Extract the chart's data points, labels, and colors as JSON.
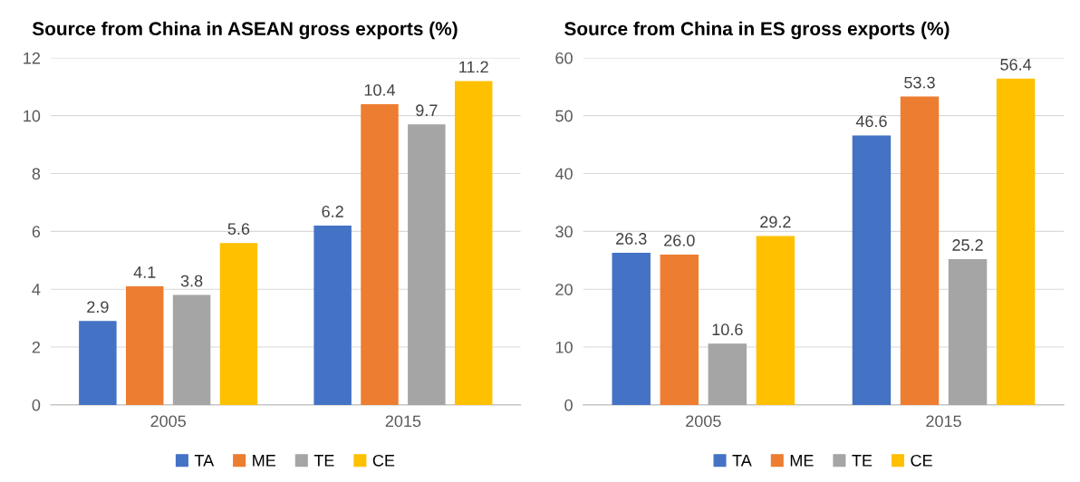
{
  "chart_data": [
    {
      "type": "bar",
      "title": "Source from China in ASEAN gross exports (%)",
      "categories": [
        "2005",
        "2015"
      ],
      "series": [
        {
          "name": "TA",
          "color": "#4472c4",
          "values": [
            2.9,
            6.2
          ],
          "value_labels": [
            "2.9",
            "6.2"
          ]
        },
        {
          "name": "ME",
          "color": "#ed7d31",
          "values": [
            4.1,
            10.4
          ],
          "value_labels": [
            "4.1",
            "10.4"
          ]
        },
        {
          "name": "TE",
          "color": "#a5a5a5",
          "values": [
            3.8,
            9.7
          ],
          "value_labels": [
            "3.8",
            "9.7"
          ]
        },
        {
          "name": "CE",
          "color": "#ffc000",
          "values": [
            5.6,
            11.2
          ],
          "value_labels": [
            "5.6",
            "11.2"
          ]
        }
      ],
      "ylim": [
        0,
        12
      ],
      "yticks": [
        0,
        2,
        4,
        6,
        8,
        10,
        12
      ],
      "grid": "y",
      "legend": "bottom"
    },
    {
      "type": "bar",
      "title": "Source from China in ES gross exports (%)",
      "categories": [
        "2005",
        "2015"
      ],
      "series": [
        {
          "name": "TA",
          "color": "#4472c4",
          "values": [
            26.3,
            46.6
          ],
          "value_labels": [
            "26.3",
            "46.6"
          ]
        },
        {
          "name": "ME",
          "color": "#ed7d31",
          "values": [
            26.0,
            53.3
          ],
          "value_labels": [
            "26.0",
            "53.3"
          ]
        },
        {
          "name": "TE",
          "color": "#a5a5a5",
          "values": [
            10.6,
            25.2
          ],
          "value_labels": [
            "10.6",
            "25.2"
          ]
        },
        {
          "name": "CE",
          "color": "#ffc000",
          "values": [
            29.2,
            56.4
          ],
          "value_labels": [
            "29.2",
            "56.4"
          ]
        }
      ],
      "ylim": [
        0,
        60
      ],
      "yticks": [
        0,
        10,
        20,
        30,
        40,
        50,
        60
      ],
      "grid": "y",
      "legend": "bottom"
    }
  ]
}
